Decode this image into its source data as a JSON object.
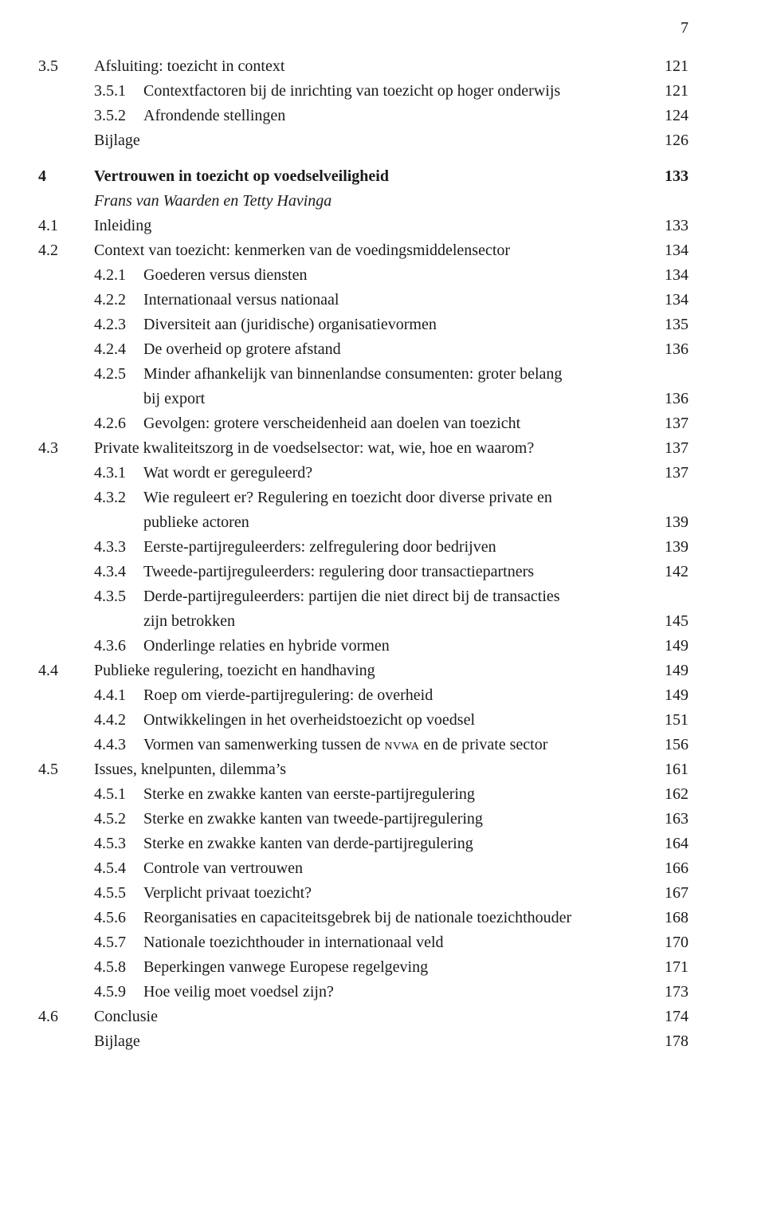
{
  "page_number": "7",
  "entries": [
    {
      "type": "section",
      "num": "3.5",
      "text": "Afsluiting: toezicht in context",
      "page": "121"
    },
    {
      "type": "sub",
      "num": "",
      "sub": "3.5.1",
      "text": "Contextfactoren bij de inrichting van toezicht op hoger onderwijs",
      "page": "121"
    },
    {
      "type": "sub",
      "num": "",
      "sub": "3.5.2",
      "text": "Afrondende stellingen",
      "page": "124"
    },
    {
      "type": "section",
      "num": "",
      "text": "Bijlage",
      "page": "126"
    },
    {
      "type": "spacer"
    },
    {
      "type": "chapter",
      "num": "4",
      "text": "Vertrouwen in toezicht op voedselveiligheid",
      "page": "133"
    },
    {
      "type": "authors",
      "num": "",
      "text": "Frans van Waarden en Tetty Havinga",
      "page": ""
    },
    {
      "type": "section",
      "num": "4.1",
      "text": "Inleiding",
      "page": "133"
    },
    {
      "type": "section",
      "num": "4.2",
      "text": "Context van toezicht: kenmerken van de voedingsmiddelensector",
      "page": "134"
    },
    {
      "type": "sub",
      "num": "",
      "sub": "4.2.1",
      "text": "Goederen versus diensten",
      "page": "134"
    },
    {
      "type": "sub",
      "num": "",
      "sub": "4.2.2",
      "text": "Internationaal versus nationaal",
      "page": "134"
    },
    {
      "type": "sub",
      "num": "",
      "sub": "4.2.3",
      "text": "Diversiteit aan (juridische) organisatievormen",
      "page": "135"
    },
    {
      "type": "sub",
      "num": "",
      "sub": "4.2.4",
      "text": "De overheid op grotere afstand",
      "page": "136"
    },
    {
      "type": "sub-multi",
      "num": "",
      "sub": "4.2.5",
      "text": "Minder afhankelijk van binnenlandse consumenten: groter belang",
      "cont": "bij export",
      "page": "136"
    },
    {
      "type": "sub",
      "num": "",
      "sub": "4.2.6",
      "text": "Gevolgen: grotere verscheidenheid aan doelen van toezicht",
      "page": "137"
    },
    {
      "type": "section",
      "num": "4.3",
      "text": "Private kwaliteitszorg in de voedselsector: wat, wie, hoe en waarom?",
      "page": "137"
    },
    {
      "type": "sub",
      "num": "",
      "sub": "4.3.1",
      "text": "Wat wordt er gereguleerd?",
      "page": "137"
    },
    {
      "type": "sub-multi",
      "num": "",
      "sub": "4.3.2",
      "text": "Wie reguleert er? Regulering en toezicht door diverse private en",
      "cont": "publieke actoren",
      "page": "139"
    },
    {
      "type": "sub",
      "num": "",
      "sub": "4.3.3",
      "text": "Eerste-partijreguleerders: zelfregulering door bedrijven",
      "page": "139"
    },
    {
      "type": "sub",
      "num": "",
      "sub": "4.3.4",
      "text": "Tweede-partijreguleerders: regulering door transactiepartners",
      "page": "142"
    },
    {
      "type": "sub-multi",
      "num": "",
      "sub": "4.3.5",
      "text": "Derde-partijreguleerders: partijen die niet direct bij de transacties",
      "cont": "zijn betrokken",
      "page": "145"
    },
    {
      "type": "sub",
      "num": "",
      "sub": "4.3.6",
      "text": "Onderlinge relaties en hybride vormen",
      "page": "149"
    },
    {
      "type": "section",
      "num": "4.4",
      "text": "Publieke regulering, toezicht en handhaving",
      "page": "149"
    },
    {
      "type": "sub",
      "num": "",
      "sub": "4.4.1",
      "text": "Roep om vierde-partijregulering: de overheid",
      "page": "149"
    },
    {
      "type": "sub",
      "num": "",
      "sub": "4.4.2",
      "text": "Ontwikkelingen in het overheidstoezicht op voedsel",
      "page": "151"
    },
    {
      "type": "sub-html",
      "num": "",
      "sub": "4.4.3",
      "text": "Vormen van samenwerking tussen de <span class=\"smallcaps\">nvwa</span> en de private sector",
      "page": "156"
    },
    {
      "type": "section",
      "num": "4.5",
      "text": "Issues, knelpunten, dilemma’s",
      "page": "161"
    },
    {
      "type": "sub",
      "num": "",
      "sub": "4.5.1",
      "text": "Sterke en zwakke kanten van eerste-partijregulering",
      "page": "162"
    },
    {
      "type": "sub",
      "num": "",
      "sub": "4.5.2",
      "text": "Sterke en zwakke kanten van tweede-partijregulering",
      "page": "163"
    },
    {
      "type": "sub",
      "num": "",
      "sub": "4.5.3",
      "text": "Sterke en zwakke kanten van derde-partijregulering",
      "page": "164"
    },
    {
      "type": "sub",
      "num": "",
      "sub": "4.5.4",
      "text": "Controle van vertrouwen",
      "page": "166"
    },
    {
      "type": "sub",
      "num": "",
      "sub": "4.5.5",
      "text": "Verplicht privaat toezicht?",
      "page": "167"
    },
    {
      "type": "sub",
      "num": "",
      "sub": "4.5.6",
      "text": "Reorganisaties en capaciteitsgebrek bij de nationale toezichthouder",
      "page": "168"
    },
    {
      "type": "sub",
      "num": "",
      "sub": "4.5.7",
      "text": "Nationale toezichthouder in internationaal veld",
      "page": "170"
    },
    {
      "type": "sub",
      "num": "",
      "sub": "4.5.8",
      "text": "Beperkingen vanwege Europese regelgeving",
      "page": "171"
    },
    {
      "type": "sub",
      "num": "",
      "sub": "4.5.9",
      "text": "Hoe veilig moet voedsel zijn?",
      "page": "173"
    },
    {
      "type": "section",
      "num": "4.6",
      "text": "Conclusie",
      "page": "174"
    },
    {
      "type": "section",
      "num": "",
      "text": "Bijlage",
      "page": "178"
    }
  ]
}
